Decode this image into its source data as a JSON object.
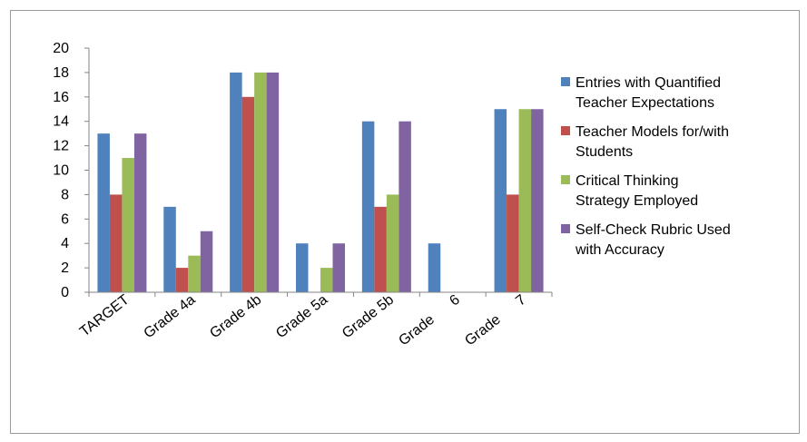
{
  "chart_data": {
    "type": "bar",
    "categories": [
      "TARGET",
      "Grade 4a",
      "Grade 4b",
      "Grade 5a",
      "Grade 5b",
      "Grade      6",
      "Grade      7"
    ],
    "series": [
      {
        "name": "Entries with Quantified Teacher Expectations",
        "color": "#4f81bd",
        "values": [
          13,
          7,
          18,
          4,
          14,
          4,
          15
        ]
      },
      {
        "name": "Teacher Models for/with Students",
        "color": "#c0504d",
        "values": [
          8,
          2,
          16,
          0,
          7,
          0,
          8
        ]
      },
      {
        "name": "Critical Thinking Strategy Employed",
        "color": "#9bbb59",
        "values": [
          11,
          3,
          18,
          2,
          8,
          0,
          15
        ]
      },
      {
        "name": "Self-Check Rubric Used with Accuracy",
        "color": "#8064a2",
        "values": [
          13,
          5,
          18,
          4,
          14,
          0,
          15
        ]
      }
    ],
    "ylim": [
      0,
      20
    ],
    "yticks": [
      0,
      2,
      4,
      6,
      8,
      10,
      12,
      14,
      16,
      18,
      20
    ],
    "grid": false,
    "legend": "right",
    "legend_lines": [
      [
        "Entries with Quantified",
        "Teacher Expectations"
      ],
      [
        "Teacher Models for/with",
        "Students"
      ],
      [
        "Critical Thinking",
        "Strategy Employed"
      ],
      [
        "Self-Check Rubric Used",
        "with Accuracy"
      ]
    ]
  }
}
